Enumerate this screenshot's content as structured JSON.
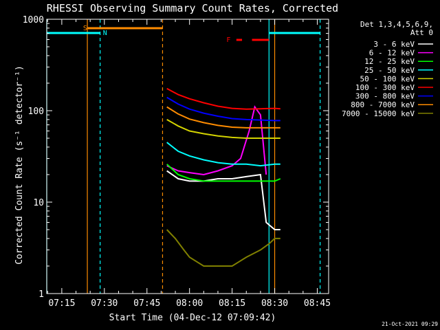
{
  "chart_data": {
    "type": "line",
    "title": "RHESSI Observing Summary Count Rates, Corrected",
    "xlabel": "Start Time (04-Dec-12 07:09:42)",
    "ylabel": "Corrected Count Rate (s⁻¹ detector⁻¹)",
    "yscale": "log",
    "ylim": [
      1,
      1000
    ],
    "xlim": [
      "07:09:42",
      "08:49:00"
    ],
    "x_ticks": [
      "07:15",
      "07:30",
      "07:45",
      "08:00",
      "08:15",
      "08:30",
      "08:45"
    ],
    "y_ticks": [
      "1",
      "10",
      "100",
      "1000"
    ],
    "legend_header": [
      "Det 1,3,4,5,6,9,",
      "Att 0"
    ],
    "legend_position": "top-right",
    "timestamp": "21-Oct-2021 09:29",
    "flags": [
      {
        "label": "S",
        "color": "#ff8c00"
      },
      {
        "label": "N",
        "color": "#00ffff"
      },
      {
        "label": "F",
        "color": "#ff0000"
      }
    ],
    "series": [
      {
        "name": "3 - 6 keV",
        "color": "#ffffff",
        "values": [
          {
            "t": "07:52",
            "v": 22
          },
          {
            "t": "07:56",
            "v": 18
          },
          {
            "t": "08:00",
            "v": 17
          },
          {
            "t": "08:05",
            "v": 17
          },
          {
            "t": "08:10",
            "v": 18
          },
          {
            "t": "08:15",
            "v": 18
          },
          {
            "t": "08:20",
            "v": 19
          },
          {
            "t": "08:25",
            "v": 20
          },
          {
            "t": "08:27",
            "v": 6
          },
          {
            "t": "08:30",
            "v": 5
          },
          {
            "t": "08:32",
            "v": 5
          }
        ]
      },
      {
        "name": "6 - 12 keV",
        "color": "#ff00ff",
        "values": [
          {
            "t": "07:52",
            "v": 25
          },
          {
            "t": "07:56",
            "v": 22
          },
          {
            "t": "08:00",
            "v": 21
          },
          {
            "t": "08:05",
            "v": 20
          },
          {
            "t": "08:10",
            "v": 22
          },
          {
            "t": "08:15",
            "v": 25
          },
          {
            "t": "08:18",
            "v": 30
          },
          {
            "t": "08:21",
            "v": 60
          },
          {
            "t": "08:23",
            "v": 110
          },
          {
            "t": "08:25",
            "v": 90
          },
          {
            "t": "08:27",
            "v": 20
          }
        ]
      },
      {
        "name": "12 - 25 keV",
        "color": "#00ff00",
        "values": [
          {
            "t": "07:52",
            "v": 26
          },
          {
            "t": "07:56",
            "v": 20
          },
          {
            "t": "08:00",
            "v": 18
          },
          {
            "t": "08:05",
            "v": 17
          },
          {
            "t": "08:10",
            "v": 17
          },
          {
            "t": "08:15",
            "v": 17
          },
          {
            "t": "08:20",
            "v": 17
          },
          {
            "t": "08:25",
            "v": 17
          },
          {
            "t": "08:30",
            "v": 17
          },
          {
            "t": "08:32",
            "v": 18
          }
        ]
      },
      {
        "name": "25 - 50 keV",
        "color": "#00ffff",
        "values": [
          {
            "t": "07:52",
            "v": 45
          },
          {
            "t": "07:56",
            "v": 36
          },
          {
            "t": "08:00",
            "v": 32
          },
          {
            "t": "08:05",
            "v": 29
          },
          {
            "t": "08:10",
            "v": 27
          },
          {
            "t": "08:15",
            "v": 26
          },
          {
            "t": "08:20",
            "v": 26
          },
          {
            "t": "08:25",
            "v": 25
          },
          {
            "t": "08:30",
            "v": 26
          },
          {
            "t": "08:32",
            "v": 26
          }
        ]
      },
      {
        "name": "50 - 100 keV",
        "color": "#d4d400",
        "values": [
          {
            "t": "07:52",
            "v": 80
          },
          {
            "t": "07:56",
            "v": 68
          },
          {
            "t": "08:00",
            "v": 60
          },
          {
            "t": "08:05",
            "v": 56
          },
          {
            "t": "08:10",
            "v": 53
          },
          {
            "t": "08:15",
            "v": 51
          },
          {
            "t": "08:20",
            "v": 50
          },
          {
            "t": "08:25",
            "v": 50
          },
          {
            "t": "08:30",
            "v": 50
          },
          {
            "t": "08:32",
            "v": 50
          }
        ]
      },
      {
        "name": "100 - 300 keV",
        "color": "#ff0000",
        "values": [
          {
            "t": "07:52",
            "v": 175
          },
          {
            "t": "07:56",
            "v": 150
          },
          {
            "t": "08:00",
            "v": 135
          },
          {
            "t": "08:05",
            "v": 122
          },
          {
            "t": "08:10",
            "v": 112
          },
          {
            "t": "08:15",
            "v": 106
          },
          {
            "t": "08:20",
            "v": 104
          },
          {
            "t": "08:25",
            "v": 105
          },
          {
            "t": "08:30",
            "v": 106
          },
          {
            "t": "08:32",
            "v": 105
          }
        ]
      },
      {
        "name": "300 - 800 keV",
        "color": "#0000ff",
        "values": [
          {
            "t": "07:52",
            "v": 140
          },
          {
            "t": "07:56",
            "v": 118
          },
          {
            "t": "08:00",
            "v": 104
          },
          {
            "t": "08:05",
            "v": 94
          },
          {
            "t": "08:10",
            "v": 87
          },
          {
            "t": "08:15",
            "v": 82
          },
          {
            "t": "08:20",
            "v": 80
          },
          {
            "t": "08:25",
            "v": 79
          },
          {
            "t": "08:30",
            "v": 78
          },
          {
            "t": "08:32",
            "v": 78
          }
        ]
      },
      {
        "name": "800 - 7000 keV",
        "color": "#ff8c00",
        "values": [
          {
            "t": "07:52",
            "v": 110
          },
          {
            "t": "07:56",
            "v": 92
          },
          {
            "t": "08:00",
            "v": 81
          },
          {
            "t": "08:05",
            "v": 74
          },
          {
            "t": "08:10",
            "v": 69
          },
          {
            "t": "08:15",
            "v": 66
          },
          {
            "t": "08:20",
            "v": 65
          },
          {
            "t": "08:25",
            "v": 65
          },
          {
            "t": "08:30",
            "v": 65
          },
          {
            "t": "08:32",
            "v": 65
          }
        ]
      },
      {
        "name": "7000 - 15000 keV",
        "color": "#808000",
        "values": [
          {
            "t": "07:52",
            "v": 5
          },
          {
            "t": "07:55",
            "v": 4
          },
          {
            "t": "07:58",
            "v": 3
          },
          {
            "t": "08:00",
            "v": 2.5
          },
          {
            "t": "08:05",
            "v": 2
          },
          {
            "t": "08:10",
            "v": 2
          },
          {
            "t": "08:15",
            "v": 2
          },
          {
            "t": "08:20",
            "v": 2.5
          },
          {
            "t": "08:25",
            "v": 3
          },
          {
            "t": "08:28",
            "v": 3.5
          },
          {
            "t": "08:30",
            "v": 4
          },
          {
            "t": "08:32",
            "v": 4
          }
        ]
      }
    ]
  }
}
